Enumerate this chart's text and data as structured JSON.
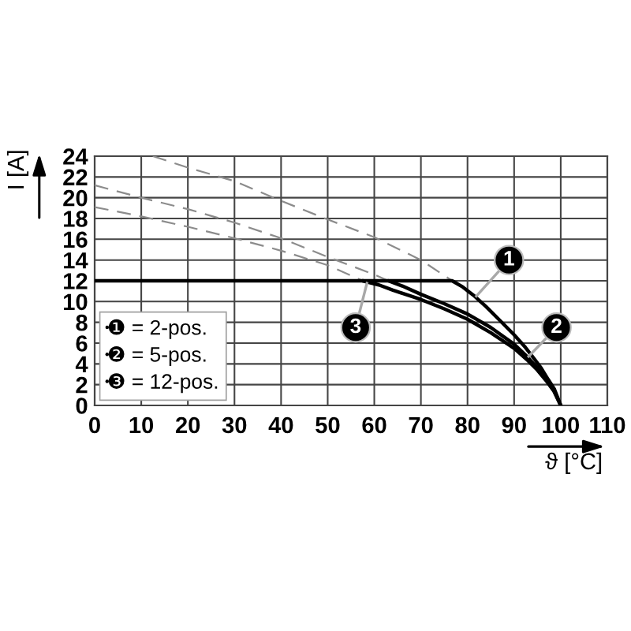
{
  "chart_data": {
    "type": "line",
    "xlabel": "ϑ [°C]",
    "ylabel": "I [A]",
    "xlim": [
      0,
      110
    ],
    "ylim": [
      0,
      24
    ],
    "xticks": [
      0,
      10,
      20,
      30,
      40,
      50,
      60,
      70,
      80,
      90,
      100,
      110
    ],
    "yticks": [
      0,
      2,
      4,
      6,
      8,
      10,
      12,
      14,
      16,
      18,
      20,
      22,
      24
    ],
    "grid": true,
    "legend": "bottom left",
    "marker": "none",
    "series": [
      {
        "name": "❶ = 2-pos.",
        "color": "#000000",
        "line_style": "solid",
        "x": [
          0,
          76.7,
          79,
          81.3,
          84,
          86.9,
          90,
          92.4,
          94.3,
          95.8,
          97.3,
          98.6,
          100
        ],
        "values": [
          12,
          12,
          11.4,
          10.6,
          9.5,
          8.2,
          6.8,
          5.6,
          4.5,
          3.6,
          2.5,
          1.6,
          0
        ]
      },
      {
        "name": "❷ = 5-pos.",
        "color": "#000000",
        "line_style": "solid",
        "x": [
          63,
          66,
          70,
          75,
          80,
          85,
          90,
          93,
          95,
          97,
          98.5,
          100
        ],
        "values": [
          12,
          11.5,
          10.7,
          9.8,
          8.8,
          7.5,
          5.9,
          4.6,
          3.6,
          2.5,
          1.5,
          0
        ]
      },
      {
        "name": "❸ = 12-pos.",
        "color": "#000000",
        "line_style": "solid",
        "x": [
          57.5,
          61,
          64,
          70,
          75,
          80,
          85,
          90,
          93,
          95,
          97,
          98.5,
          100
        ],
        "values": [
          12,
          11.6,
          11.1,
          10.2,
          9.3,
          8.3,
          7,
          5.5,
          4.3,
          3.4,
          2.3,
          1.4,
          0
        ]
      },
      {
        "color": "#8c8c8c",
        "line_style": "dashed",
        "x": [
          12.5,
          20,
          30,
          40,
          50,
          60,
          70,
          76.7
        ],
        "values": [
          24,
          22.9,
          21.6,
          19.7,
          17.9,
          16.2,
          14,
          12
        ]
      },
      {
        "color": "#8c8c8c",
        "line_style": "dashed",
        "x": [
          0,
          10,
          20,
          30,
          40,
          50,
          60,
          63
        ],
        "values": [
          21.2,
          20,
          18.9,
          17.6,
          16.1,
          14.3,
          12.6,
          12
        ]
      },
      {
        "color": "#8c8c8c",
        "line_style": "dashed",
        "x": [
          0,
          10,
          20,
          30,
          40,
          50,
          57.5
        ],
        "values": [
          19.1,
          18.2,
          17.2,
          16.1,
          14.9,
          13.5,
          12
        ]
      }
    ],
    "annotations": [
      {
        "text": "1",
        "x": 88.9,
        "y": 14
      },
      {
        "text": "2",
        "x": 99.1,
        "y": 7.5
      },
      {
        "text": "3",
        "x": 56,
        "y": 7.5
      }
    ]
  }
}
